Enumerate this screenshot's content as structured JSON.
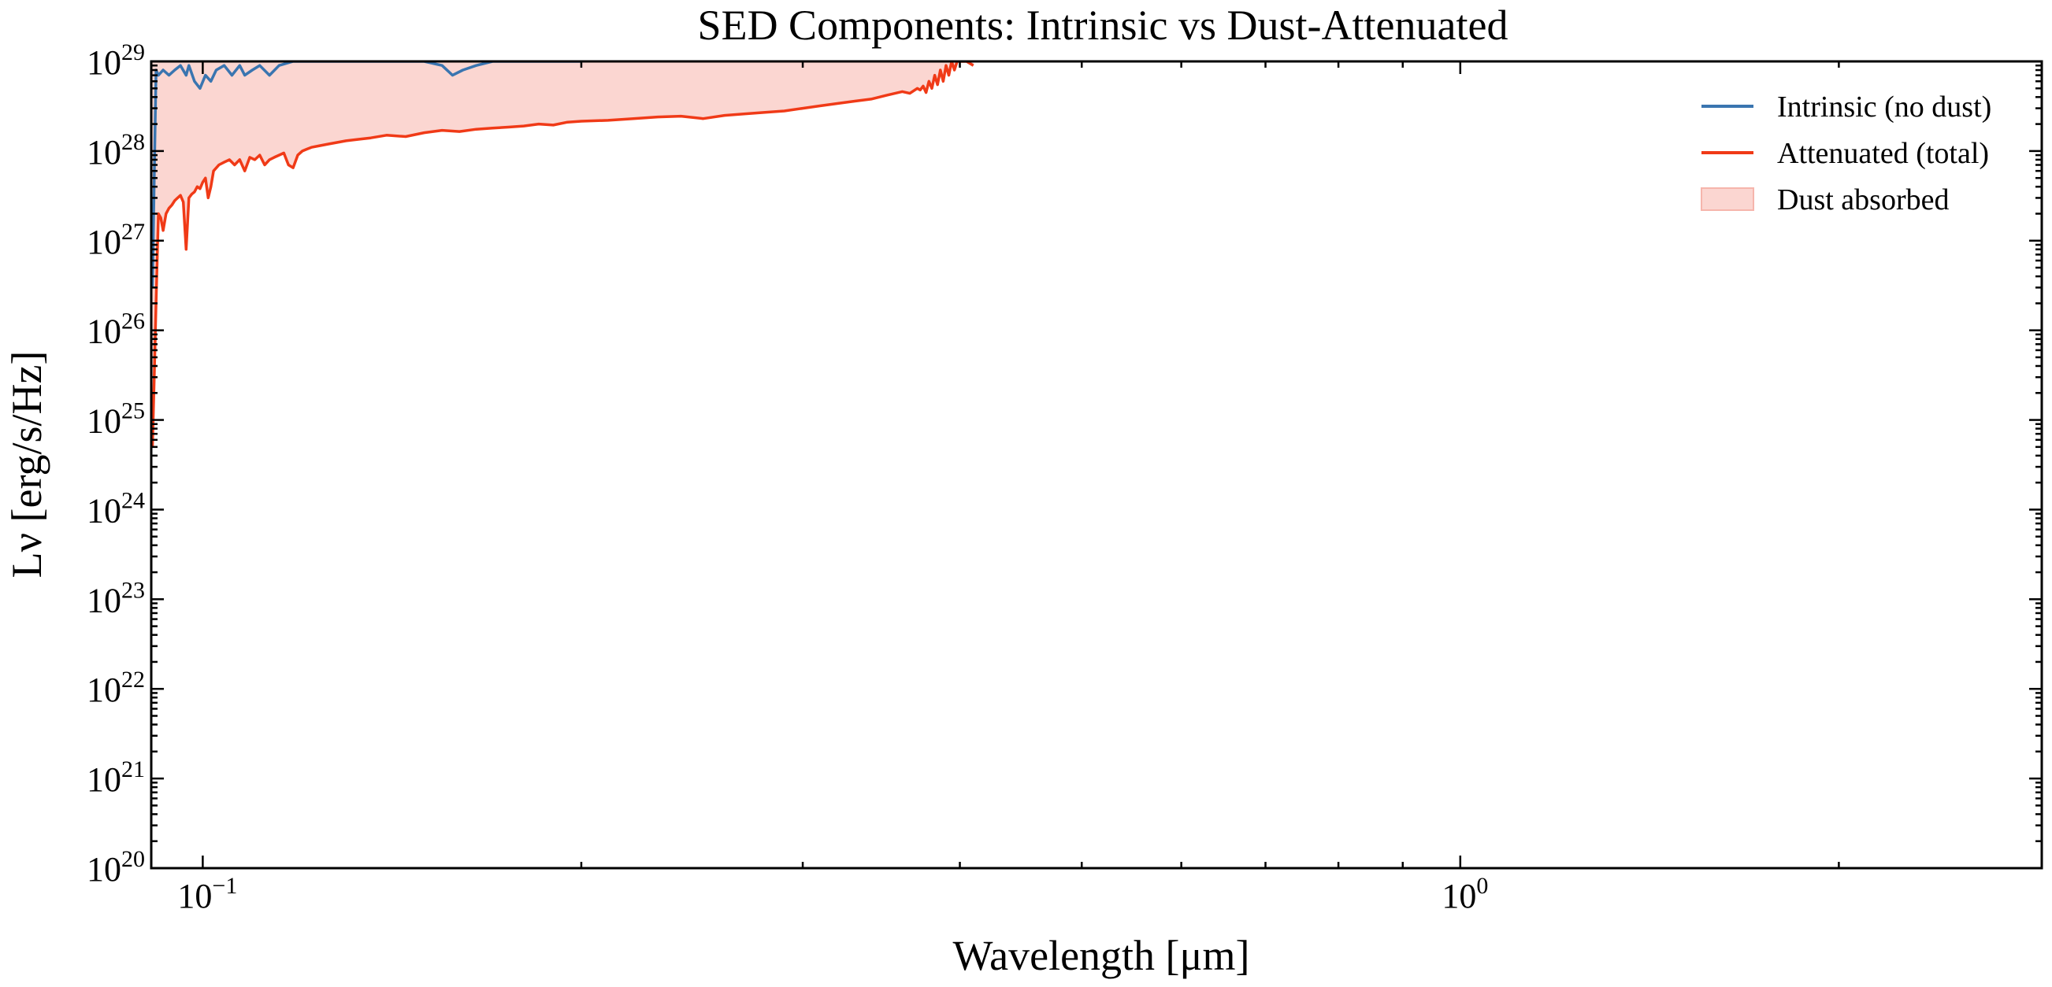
{
  "chart_data": {
    "type": "line",
    "title": "SED Components: Intrinsic vs Dust-Attenuated",
    "xlabel": "Wavelength [μm]",
    "ylabel": "Lν [erg/s/Hz]",
    "xscale": "log",
    "yscale": "log",
    "xlim": [
      0.091,
      2.9
    ],
    "ylim": [
      1e+20,
      1e+29
    ],
    "x_ticks": [
      {
        "value": 0.1,
        "base": "10",
        "exp": "−1"
      },
      {
        "value": 1,
        "base": "10",
        "exp": "0"
      }
    ],
    "y_ticks": [
      {
        "value": 1e+20,
        "base": "10",
        "exp": "20"
      },
      {
        "value": 1e+21,
        "base": "10",
        "exp": "21"
      },
      {
        "value": 1e+22,
        "base": "10",
        "exp": "22"
      },
      {
        "value": 1e+23,
        "base": "10",
        "exp": "23"
      },
      {
        "value": 1e+24,
        "base": "10",
        "exp": "24"
      },
      {
        "value": 1e+25,
        "base": "10",
        "exp": "25"
      },
      {
        "value": 1e+26,
        "base": "10",
        "exp": "26"
      },
      {
        "value": 1e+27,
        "base": "10",
        "exp": "27"
      },
      {
        "value": 1e+28,
        "base": "10",
        "exp": "28"
      },
      {
        "value": 1e+29,
        "base": "10",
        "exp": "29"
      }
    ],
    "grid": false,
    "legend_position": "top-right",
    "series": [
      {
        "name": "Intrinsic (no dust)",
        "color": "#3a75b0",
        "x": [
          0.0912,
          0.0918,
          0.0922,
          0.093,
          0.094,
          0.095,
          0.096,
          0.097,
          0.0975,
          0.0985,
          0.0995,
          0.1005,
          0.1015,
          0.1025,
          0.104,
          0.1055,
          0.107,
          0.108,
          0.1095,
          0.111,
          0.113,
          0.115,
          0.118,
          0.123,
          0.13,
          0.14,
          0.15,
          0.155,
          0.158,
          0.161,
          0.165,
          0.17,
          0.18,
          0.2
        ],
        "y": [
          3e+26,
          8e+28,
          7e+28,
          8e+28,
          7e+28,
          8e+28,
          9e+28,
          7e+28,
          9e+28,
          6e+28,
          5e+28,
          7e+28,
          6e+28,
          8e+28,
          9e+28,
          7e+28,
          9e+28,
          7e+28,
          8e+28,
          9e+28,
          7e+28,
          9e+28,
          1e+29,
          1e+29,
          1e+29,
          1e+29,
          1e+29,
          9e+28,
          7e+28,
          8e+28,
          9e+28,
          1e+29,
          1e+29,
          1e+29
        ]
      },
      {
        "name": "Attenuated (total)",
        "color": "#f03a17",
        "x": [
          0.0912,
          0.0915,
          0.0918,
          0.0922,
          0.0926,
          0.093,
          0.0935,
          0.094,
          0.0945,
          0.095,
          0.0955,
          0.096,
          0.0965,
          0.097,
          0.0975,
          0.098,
          0.0985,
          0.099,
          0.0995,
          0.1,
          0.1005,
          0.101,
          0.1015,
          0.102,
          0.103,
          0.104,
          0.105,
          0.106,
          0.107,
          0.108,
          0.109,
          0.11,
          0.111,
          0.112,
          0.113,
          0.114,
          0.115,
          0.116,
          0.117,
          0.118,
          0.119,
          0.12,
          0.121,
          0.122,
          0.124,
          0.126,
          0.128,
          0.13,
          0.133,
          0.136,
          0.14,
          0.145,
          0.15,
          0.155,
          0.16,
          0.165,
          0.17,
          0.175,
          0.18,
          0.185,
          0.19,
          0.195,
          0.2,
          0.21,
          0.22,
          0.23,
          0.24,
          0.25,
          0.26,
          0.27,
          0.28,
          0.29,
          0.3,
          0.31,
          0.32,
          0.33,
          0.34,
          0.35,
          0.36,
          0.365,
          0.37,
          0.372,
          0.374,
          0.376,
          0.378,
          0.38,
          0.382,
          0.384,
          0.386,
          0.388,
          0.39,
          0.392,
          0.394,
          0.396,
          0.398,
          0.4,
          0.402,
          0.405,
          0.41
        ],
        "y": [
          5e+24,
          3e+25,
          2e+26,
          2e+27,
          1.8e+27,
          1.3e+27,
          2e+27,
          2.3e+27,
          2.5e+27,
          2.8e+27,
          3e+27,
          3.2e+27,
          2.7e+27,
          8e+26,
          3e+27,
          3.3e+27,
          3.5e+27,
          4e+27,
          3.8e+27,
          4.5e+27,
          5e+27,
          3e+27,
          4e+27,
          6e+27,
          7e+27,
          7.5e+27,
          8e+27,
          7e+27,
          8e+27,
          6e+27,
          8.5e+27,
          8e+27,
          9e+27,
          7e+27,
          8e+27,
          8.5e+27,
          9e+27,
          9.5e+27,
          7e+27,
          6.5e+27,
          9e+27,
          1e+28,
          1.05e+28,
          1.1e+28,
          1.15e+28,
          1.2e+28,
          1.25e+28,
          1.3e+28,
          1.35e+28,
          1.4e+28,
          1.5e+28,
          1.45e+28,
          1.6e+28,
          1.7e+28,
          1.65e+28,
          1.75e+28,
          1.8e+28,
          1.85e+28,
          1.9e+28,
          2e+28,
          1.95e+28,
          2.1e+28,
          2.15e+28,
          2.2e+28,
          2.3e+28,
          2.4e+28,
          2.45e+28,
          2.3e+28,
          2.5e+28,
          2.6e+28,
          2.7e+28,
          2.8e+28,
          3e+28,
          3.2e+28,
          3.4e+28,
          3.6e+28,
          3.8e+28,
          4.2e+28,
          4.6e+28,
          4.4e+28,
          5e+28,
          4.8e+28,
          5.3e+28,
          4.5e+28,
          6e+28,
          5e+28,
          7e+28,
          5.5e+28,
          8e+28,
          6e+28,
          9e+28,
          7e+28,
          1e+29,
          8e+28,
          1e+29,
          1e+29,
          1e+29,
          1e+29,
          9e+28
        ]
      }
    ],
    "fill_between": {
      "name": "Dust absorbed",
      "color": "#fbd6d1",
      "edge_color": "#f6b5ac",
      "upper": 1e+29
    }
  },
  "legend": {
    "items": [
      {
        "label": "Intrinsic (no dust)",
        "kind": "line",
        "color": "#3a75b0"
      },
      {
        "label": "Attenuated (total)",
        "kind": "line",
        "color": "#f03a17"
      },
      {
        "label": "Dust absorbed",
        "kind": "patch",
        "color": "#fbd6d1"
      }
    ]
  }
}
